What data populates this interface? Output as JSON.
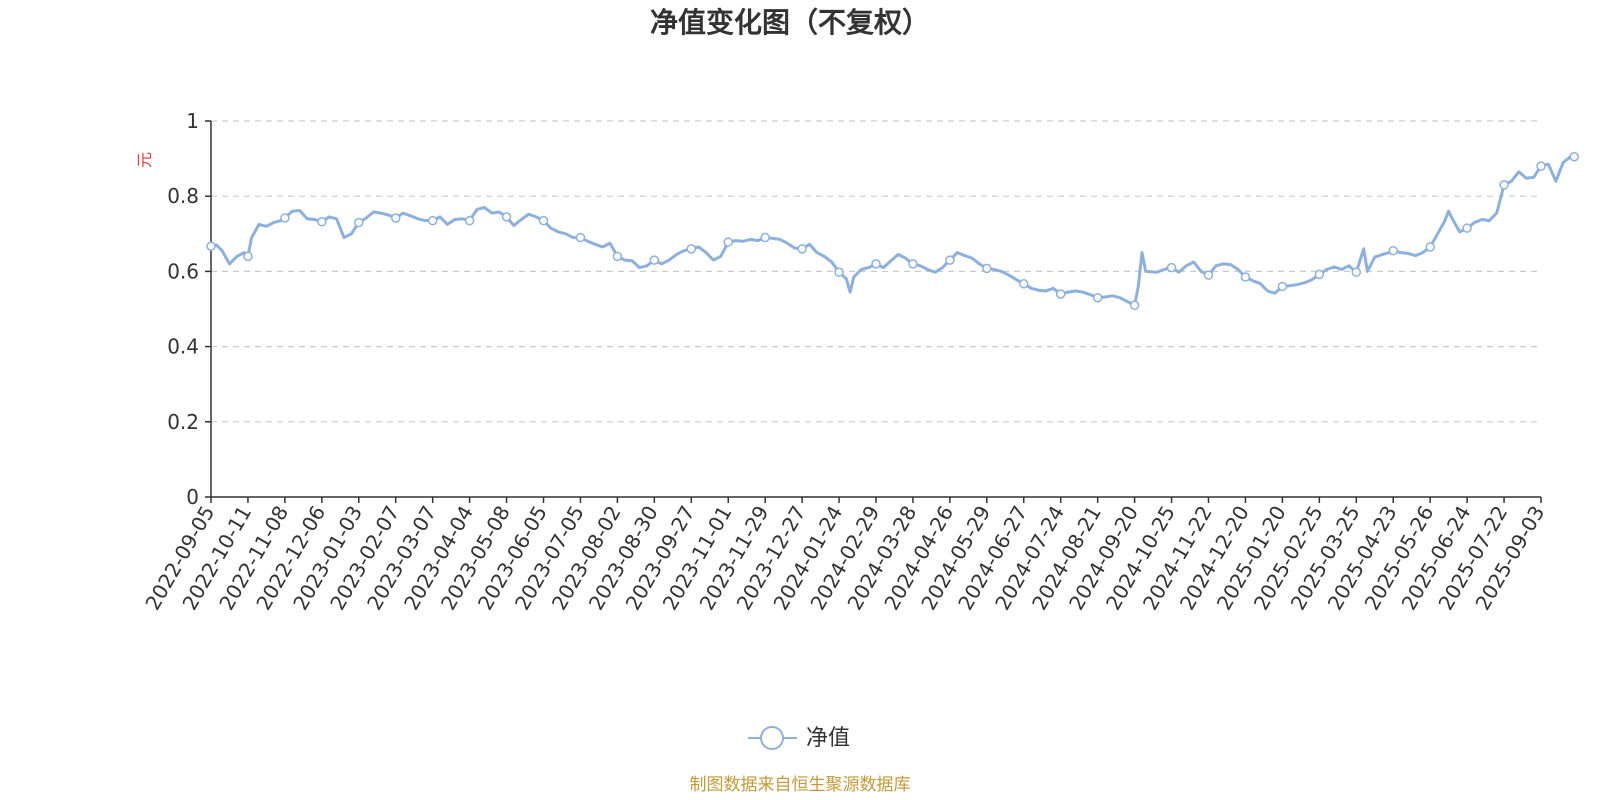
{
  "colors": {
    "series": "#8eb0dc",
    "ylabel": "#e03a3a",
    "source": "#c49a3a",
    "axis": "#333333",
    "grid": "#cccccc"
  },
  "footer": {
    "source": "制图数据来自恒生聚源数据库"
  },
  "chart_data": {
    "type": "line",
    "title": "净值变化图（不复权）",
    "xlabel": "",
    "ylabel": "元",
    "ylim": [
      0,
      1
    ],
    "yticks": [
      "0",
      "0.2",
      "0.4",
      "0.6",
      "0.8",
      "1"
    ],
    "grid": true,
    "legend_position": "bottom-center",
    "categories": [
      "2022-09-05",
      "2022-10-11",
      "2022-11-08",
      "2022-12-06",
      "2023-01-03",
      "2023-02-07",
      "2023-03-07",
      "2023-04-04",
      "2023-05-08",
      "2023-06-05",
      "2023-07-05",
      "2023-08-02",
      "2023-08-30",
      "2023-09-27",
      "2023-11-01",
      "2023-11-29",
      "2023-12-27",
      "2024-01-24",
      "2024-02-29",
      "2024-03-28",
      "2024-04-26",
      "2024-05-29",
      "2024-06-27",
      "2024-07-24",
      "2024-08-21",
      "2024-09-20",
      "2024-10-25",
      "2024-11-22",
      "2024-12-20",
      "2025-01-20",
      "2025-02-25",
      "2025-03-25",
      "2025-04-23",
      "2025-05-26",
      "2025-06-24",
      "2025-07-22",
      "2025-09-03"
    ],
    "series": [
      {
        "name": "净值",
        "points": [
          [
            0,
            0.667
          ],
          [
            0.15,
            0.67
          ],
          [
            0.3,
            0.655
          ],
          [
            0.5,
            0.62
          ],
          [
            0.7,
            0.64
          ],
          [
            0.9,
            0.65
          ],
          [
            1.0,
            0.64
          ],
          [
            1.1,
            0.69
          ],
          [
            1.3,
            0.725
          ],
          [
            1.5,
            0.72
          ],
          [
            1.7,
            0.73
          ],
          [
            1.9,
            0.735
          ],
          [
            2.0,
            0.742
          ],
          [
            2.2,
            0.76
          ],
          [
            2.4,
            0.762
          ],
          [
            2.6,
            0.74
          ],
          [
            2.8,
            0.738
          ],
          [
            3.0,
            0.732
          ],
          [
            3.2,
            0.745
          ],
          [
            3.4,
            0.74
          ],
          [
            3.6,
            0.69
          ],
          [
            3.8,
            0.7
          ],
          [
            4.0,
            0.73
          ],
          [
            4.2,
            0.742
          ],
          [
            4.4,
            0.758
          ],
          [
            4.6,
            0.755
          ],
          [
            4.8,
            0.75
          ],
          [
            5.0,
            0.742
          ],
          [
            5.2,
            0.755
          ],
          [
            5.4,
            0.748
          ],
          [
            5.6,
            0.74
          ],
          [
            5.8,
            0.735
          ],
          [
            6.0,
            0.735
          ],
          [
            6.2,
            0.745
          ],
          [
            6.4,
            0.725
          ],
          [
            6.6,
            0.738
          ],
          [
            6.8,
            0.74
          ],
          [
            7.0,
            0.735
          ],
          [
            7.2,
            0.765
          ],
          [
            7.4,
            0.77
          ],
          [
            7.6,
            0.755
          ],
          [
            7.8,
            0.758
          ],
          [
            8.0,
            0.745
          ],
          [
            8.2,
            0.722
          ],
          [
            8.4,
            0.738
          ],
          [
            8.6,
            0.752
          ],
          [
            8.8,
            0.745
          ],
          [
            9.0,
            0.735
          ],
          [
            9.2,
            0.715
          ],
          [
            9.4,
            0.705
          ],
          [
            9.6,
            0.7
          ],
          [
            9.8,
            0.69
          ],
          [
            10.0,
            0.69
          ],
          [
            10.2,
            0.68
          ],
          [
            10.4,
            0.672
          ],
          [
            10.6,
            0.665
          ],
          [
            10.8,
            0.675
          ],
          [
            11.0,
            0.64
          ],
          [
            11.2,
            0.63
          ],
          [
            11.4,
            0.628
          ],
          [
            11.6,
            0.61
          ],
          [
            11.8,
            0.615
          ],
          [
            12.0,
            0.63
          ],
          [
            12.2,
            0.62
          ],
          [
            12.4,
            0.63
          ],
          [
            12.6,
            0.645
          ],
          [
            12.8,
            0.655
          ],
          [
            13.0,
            0.66
          ],
          [
            13.2,
            0.665
          ],
          [
            13.4,
            0.65
          ],
          [
            13.6,
            0.63
          ],
          [
            13.8,
            0.64
          ],
          [
            14.0,
            0.678
          ],
          [
            14.2,
            0.682
          ],
          [
            14.4,
            0.68
          ],
          [
            14.6,
            0.685
          ],
          [
            14.8,
            0.682
          ],
          [
            15.0,
            0.69
          ],
          [
            15.2,
            0.688
          ],
          [
            15.4,
            0.685
          ],
          [
            15.6,
            0.675
          ],
          [
            15.8,
            0.662
          ],
          [
            16.0,
            0.66
          ],
          [
            16.2,
            0.672
          ],
          [
            16.4,
            0.65
          ],
          [
            16.6,
            0.64
          ],
          [
            16.8,
            0.625
          ],
          [
            17.0,
            0.598
          ],
          [
            17.2,
            0.58
          ],
          [
            17.3,
            0.545
          ],
          [
            17.4,
            0.585
          ],
          [
            17.6,
            0.605
          ],
          [
            17.8,
            0.61
          ],
          [
            18.0,
            0.62
          ],
          [
            18.2,
            0.61
          ],
          [
            18.4,
            0.628
          ],
          [
            18.6,
            0.645
          ],
          [
            18.8,
            0.635
          ],
          [
            19.0,
            0.62
          ],
          [
            19.2,
            0.615
          ],
          [
            19.4,
            0.605
          ],
          [
            19.6,
            0.598
          ],
          [
            19.8,
            0.61
          ],
          [
            20.0,
            0.63
          ],
          [
            20.2,
            0.65
          ],
          [
            20.4,
            0.642
          ],
          [
            20.6,
            0.635
          ],
          [
            20.8,
            0.62
          ],
          [
            21.0,
            0.608
          ],
          [
            21.2,
            0.605
          ],
          [
            21.4,
            0.6
          ],
          [
            21.6,
            0.59
          ],
          [
            21.8,
            0.578
          ],
          [
            22.0,
            0.567
          ],
          [
            22.2,
            0.555
          ],
          [
            22.4,
            0.55
          ],
          [
            22.6,
            0.548
          ],
          [
            22.8,
            0.555
          ],
          [
            23.0,
            0.54
          ],
          [
            23.2,
            0.545
          ],
          [
            23.4,
            0.548
          ],
          [
            23.6,
            0.545
          ],
          [
            23.8,
            0.538
          ],
          [
            24.0,
            0.53
          ],
          [
            24.2,
            0.532
          ],
          [
            24.4,
            0.535
          ],
          [
            24.6,
            0.53
          ],
          [
            24.8,
            0.52
          ],
          [
            25.0,
            0.51
          ],
          [
            25.1,
            0.56
          ],
          [
            25.2,
            0.65
          ],
          [
            25.3,
            0.6
          ],
          [
            25.6,
            0.598
          ],
          [
            25.8,
            0.605
          ],
          [
            26.0,
            0.61
          ],
          [
            26.2,
            0.598
          ],
          [
            26.4,
            0.615
          ],
          [
            26.6,
            0.625
          ],
          [
            26.8,
            0.6
          ],
          [
            27.0,
            0.59
          ],
          [
            27.2,
            0.615
          ],
          [
            27.4,
            0.62
          ],
          [
            27.6,
            0.618
          ],
          [
            27.8,
            0.605
          ],
          [
            28.0,
            0.585
          ],
          [
            28.2,
            0.575
          ],
          [
            28.4,
            0.568
          ],
          [
            28.6,
            0.548
          ],
          [
            28.8,
            0.542
          ],
          [
            29.0,
            0.56
          ],
          [
            29.2,
            0.562
          ],
          [
            29.4,
            0.565
          ],
          [
            29.6,
            0.57
          ],
          [
            29.8,
            0.578
          ],
          [
            30.0,
            0.592
          ],
          [
            30.2,
            0.605
          ],
          [
            30.4,
            0.612
          ],
          [
            30.6,
            0.605
          ],
          [
            30.8,
            0.615
          ],
          [
            31.0,
            0.598
          ],
          [
            31.2,
            0.66
          ],
          [
            31.3,
            0.6
          ],
          [
            31.5,
            0.638
          ],
          [
            31.7,
            0.645
          ],
          [
            31.9,
            0.65
          ],
          [
            32.0,
            0.655
          ],
          [
            32.2,
            0.65
          ],
          [
            32.4,
            0.648
          ],
          [
            32.6,
            0.642
          ],
          [
            32.8,
            0.65
          ],
          [
            33.0,
            0.665
          ],
          [
            33.2,
            0.7
          ],
          [
            33.4,
            0.735
          ],
          [
            33.5,
            0.76
          ],
          [
            33.6,
            0.74
          ],
          [
            33.8,
            0.705
          ],
          [
            34.0,
            0.715
          ],
          [
            34.2,
            0.73
          ],
          [
            34.4,
            0.738
          ],
          [
            34.6,
            0.735
          ],
          [
            34.8,
            0.755
          ],
          [
            35.0,
            0.83
          ],
          [
            35.2,
            0.84
          ],
          [
            35.4,
            0.865
          ],
          [
            35.6,
            0.848
          ],
          [
            35.8,
            0.85
          ],
          [
            36.0,
            0.88
          ],
          [
            36.2,
            0.885
          ],
          [
            36.4,
            0.84
          ],
          [
            36.6,
            0.89
          ],
          [
            36.8,
            0.905
          ],
          [
            36.9,
            0.905
          ]
        ],
        "markers": [
          [
            0,
            0.667
          ],
          [
            1,
            0.64
          ],
          [
            2,
            0.742
          ],
          [
            3,
            0.732
          ],
          [
            4,
            0.73
          ],
          [
            5,
            0.742
          ],
          [
            6,
            0.735
          ],
          [
            7,
            0.735
          ],
          [
            8,
            0.745
          ],
          [
            9,
            0.735
          ],
          [
            10,
            0.69
          ],
          [
            11,
            0.64
          ],
          [
            12,
            0.63
          ],
          [
            13,
            0.66
          ],
          [
            14,
            0.678
          ],
          [
            15,
            0.69
          ],
          [
            16,
            0.66
          ],
          [
            17,
            0.598
          ],
          [
            18,
            0.62
          ],
          [
            19,
            0.62
          ],
          [
            20,
            0.63
          ],
          [
            21,
            0.608
          ],
          [
            22,
            0.567
          ],
          [
            23,
            0.54
          ],
          [
            24,
            0.53
          ],
          [
            25,
            0.51
          ],
          [
            26,
            0.61
          ],
          [
            27,
            0.59
          ],
          [
            28,
            0.585
          ],
          [
            29,
            0.56
          ],
          [
            30,
            0.592
          ],
          [
            31,
            0.598
          ],
          [
            32,
            0.655
          ],
          [
            33,
            0.665
          ],
          [
            34,
            0.715
          ],
          [
            35,
            0.83
          ],
          [
            36,
            0.88
          ],
          [
            36.9,
            0.905
          ]
        ]
      }
    ]
  }
}
